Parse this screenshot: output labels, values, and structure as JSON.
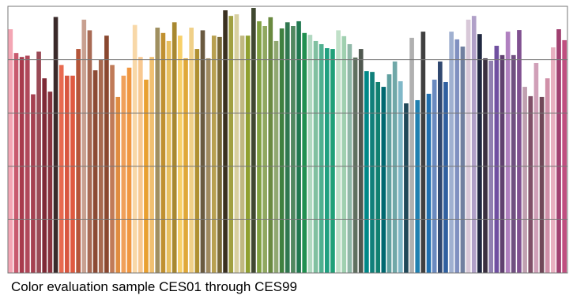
{
  "chart_data": {
    "type": "bar",
    "title": "Color evaluation sample CES01 through CES99",
    "categories": [
      null,
      null,
      null,
      null,
      null,
      null,
      null,
      null,
      null,
      null,
      null,
      null,
      null,
      null,
      null,
      null,
      null,
      null,
      null,
      null,
      null,
      null,
      null,
      null,
      null,
      null,
      null,
      null,
      null,
      null,
      null,
      null,
      null,
      null,
      null,
      null,
      null,
      null,
      null,
      null,
      null,
      null,
      null,
      null,
      null,
      null,
      null,
      null,
      null,
      null,
      null,
      null,
      null,
      null,
      null,
      null,
      null,
      null,
      null,
      null,
      null,
      null,
      null,
      null,
      null,
      null,
      null,
      null,
      null,
      null,
      null,
      null,
      null,
      null,
      null,
      null,
      null,
      null,
      null,
      null,
      null,
      null,
      null,
      null,
      null,
      null,
      null,
      null,
      null,
      null,
      null,
      null,
      null,
      null,
      null,
      null,
      null,
      null,
      null
    ],
    "values": [
      91.4,
      82.5,
      81,
      81.5,
      67,
      83,
      73,
      68,
      96,
      78,
      74,
      74,
      84,
      95,
      91,
      76,
      80,
      89,
      78,
      66,
      74,
      77,
      93,
      81,
      72.5,
      81,
      92,
      90,
      87,
      94,
      89,
      80.5,
      92,
      84,
      91,
      80.5,
      89,
      88.5,
      98.5,
      96.4,
      97,
      89,
      89,
      99.4,
      94.4,
      92.6,
      95.9,
      87,
      91.7,
      94,
      92.6,
      94.4,
      90,
      89.3,
      87,
      85.8,
      84.3,
      84,
      91,
      88.8,
      85.8,
      80.8,
      84,
      75.7,
      75.4,
      71.6,
      69.8,
      74.5,
      79.3,
      71.9,
      63.6,
      88.2,
      64.8,
      90.5,
      67.2,
      72.5,
      79.3,
      71.6,
      90.5,
      87.6,
      84.9,
      95,
      96.4,
      89.6,
      80.5,
      79.6,
      85.2,
      81.7,
      90.5,
      81.7,
      91.1,
      69.8,
      66.3,
      78.7,
      66,
      73,
      84.6,
      91.4,
      87.3
    ],
    "colors": [
      "#f4a6b4",
      "#c85a6e",
      "#a83a4c",
      "#b0485a",
      "#a54050",
      "#9a4a56",
      "#7e2a36",
      "#8a3440",
      "#3a2a2a",
      "#e86a50",
      "#d85640",
      "#e05a40",
      "#b4563a",
      "#c8a090",
      "#a86a54",
      "#8c4a34",
      "#a86a50",
      "#8a4830",
      "#c07a58",
      "#e08c40",
      "#f0a05a",
      "#f09640",
      "#f8d8a8",
      "#f8c890",
      "#e8a030",
      "#f0c070",
      "#a09060",
      "#c09030",
      "#e8c060",
      "#a88830",
      "#f8d068",
      "#e0a838",
      "#f0d088",
      "#b09030",
      "#6a5a40",
      "#a08a60",
      "#b8a050",
      "#7a6a38",
      "#3a3020",
      "#a0a040",
      "#d8d0a0",
      "#c0b880",
      "#90a030",
      "#404830",
      "#80a040",
      "#90a860",
      "#6a8a40",
      "#90a870",
      "#408040",
      "#307850",
      "#508860",
      "#207850",
      "#209050",
      "#b0d8c0",
      "#80c0a0",
      "#50b090",
      "#20a080",
      "#20a078",
      "#c0e0c8",
      "#a0d0b0",
      "#90b8a8",
      "#607060",
      "#505850",
      "#008888",
      "#10807a",
      "#108070",
      "#006870",
      "#60a0a0",
      "#70a8a8",
      "#80b8c8",
      "#204858",
      "#b0b0b0",
      "#2080b0",
      "#404040",
      "#2070b0",
      "#6a8ac0",
      "#304870",
      "#3060a0",
      "#a0b0d0",
      "#8090c0",
      "#7080a0",
      "#d8c8d8",
      "#b0a0c8",
      "#202840",
      "#3a3040",
      "#9080b0",
      "#7050a0",
      "#604070",
      "#b080c0",
      "#705080",
      "#805090",
      "#c0a0b0",
      "#805068",
      "#d0a0b8",
      "#704858",
      "#d090a8",
      "#e8b0c0",
      "#a04070",
      "#c05080"
    ],
    "ylim": [
      0,
      100
    ],
    "yticks": [
      0,
      20,
      40,
      60,
      80,
      100
    ],
    "grid": true
  }
}
